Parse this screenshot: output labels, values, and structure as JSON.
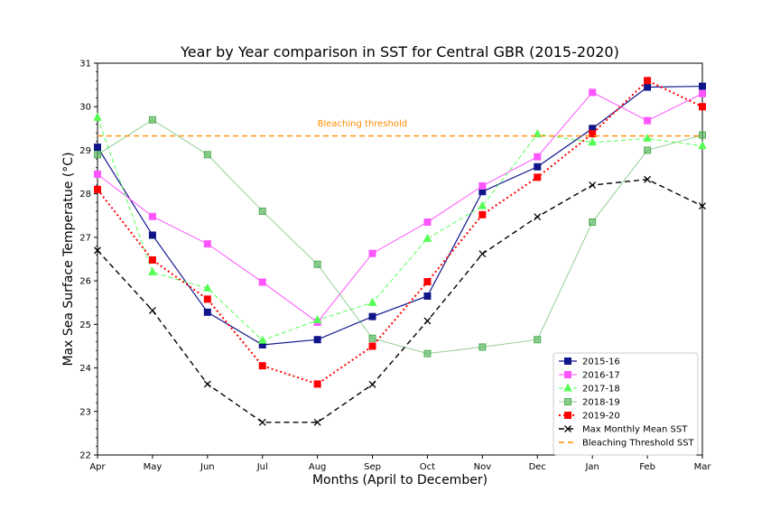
{
  "chart_data": {
    "type": "line",
    "title": "Year by Year comparison in SST for Central GBR (2015-2020)",
    "xlabel": "Months (April to December)",
    "ylabel": "Max Sea Surface Temperatue (°C)",
    "categories": [
      "Apr",
      "May",
      "Jun",
      "Jul",
      "Aug",
      "Sep",
      "Oct",
      "Nov",
      "Dec",
      "Jan",
      "Feb",
      "Mar"
    ],
    "ylim": [
      22,
      31
    ],
    "yticks": [
      22,
      23,
      24,
      25,
      26,
      27,
      28,
      29,
      30,
      31
    ],
    "grid": false,
    "legend_position": "lower-right",
    "series": [
      {
        "name": "2015-16",
        "color": "#10158a",
        "dash": "",
        "width": 1.2,
        "marker": "square",
        "values": [
          29.07,
          27.05,
          25.28,
          24.53,
          24.65,
          25.18,
          25.65,
          28.05,
          28.62,
          29.5,
          30.45,
          30.47
        ]
      },
      {
        "name": "2016-17",
        "color": "#ff55ff",
        "dash": "",
        "width": 1.0,
        "marker": "square",
        "values": [
          28.45,
          27.48,
          26.85,
          25.97,
          25.05,
          26.63,
          27.35,
          28.18,
          28.85,
          30.33,
          29.68,
          30.3
        ]
      },
      {
        "name": "2017-18",
        "color": "#55ff55",
        "dash": "5,3",
        "width": 1.0,
        "marker": "triangle",
        "values": [
          29.75,
          26.2,
          25.83,
          24.63,
          25.1,
          25.5,
          26.97,
          27.72,
          29.37,
          29.18,
          29.27,
          29.1
        ]
      },
      {
        "name": "2018-19",
        "color": "#4caf50",
        "dash": "",
        "width": 1.0,
        "marker": "square",
        "opacity": 0.6,
        "values": [
          28.9,
          29.7,
          28.9,
          27.6,
          26.38,
          24.68,
          24.33,
          24.48,
          24.65,
          27.35,
          29.0,
          29.35
        ]
      },
      {
        "name": "2019-20",
        "color": "#ff0000",
        "dash": "2,3",
        "width": 2.0,
        "marker": "square",
        "values": [
          28.1,
          26.48,
          25.58,
          24.05,
          23.63,
          24.5,
          25.98,
          27.52,
          28.38,
          29.38,
          30.6,
          30.0
        ]
      },
      {
        "name": "Max Monthly Mean SST",
        "color": "#000000",
        "dash": "6,4",
        "width": 1.4,
        "marker": "x",
        "values": [
          26.7,
          25.32,
          23.63,
          22.75,
          22.75,
          23.62,
          25.08,
          26.62,
          27.47,
          28.2,
          28.33,
          27.72
        ]
      },
      {
        "name": "Bleaching Threshold SST",
        "color": "#ff8c00",
        "dash": "6,4",
        "width": 1.4,
        "marker": "none",
        "values": [
          29.33,
          29.33,
          29.33,
          29.33,
          29.33,
          29.33,
          29.33,
          29.33,
          29.33,
          29.33,
          29.33,
          29.33
        ]
      }
    ],
    "annotations": [
      {
        "text": "Bleaching threshold",
        "color": "#ff8c00",
        "x": "Aug",
        "y": 29.55
      }
    ]
  }
}
